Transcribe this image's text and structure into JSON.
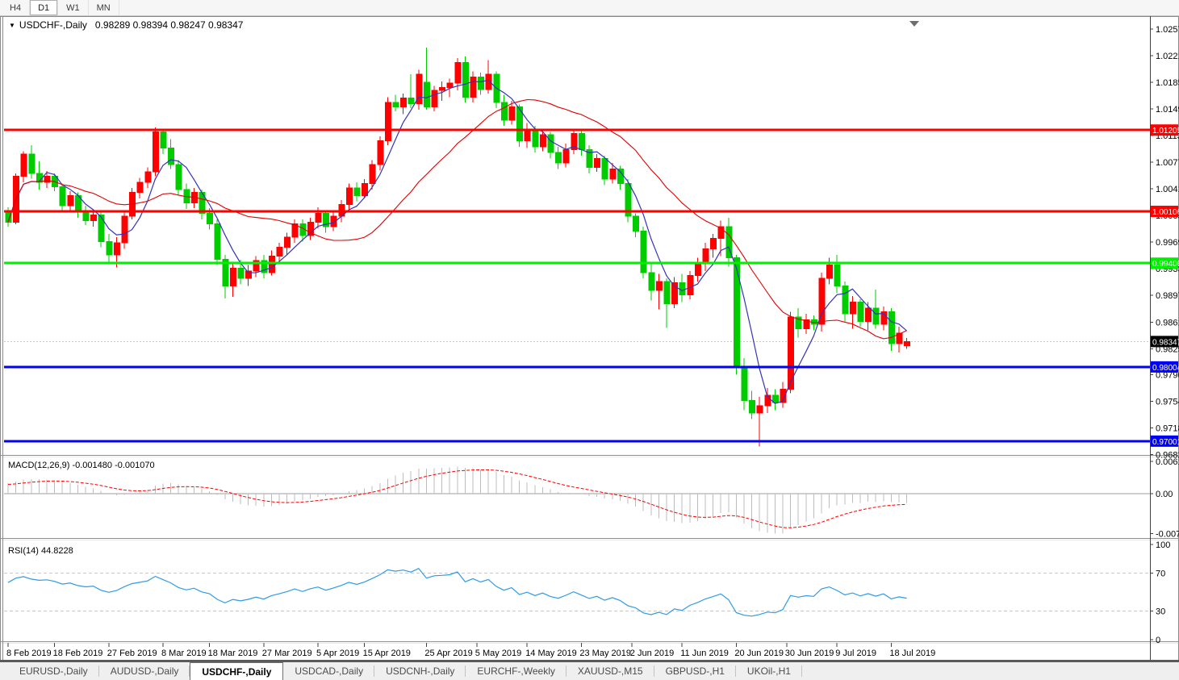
{
  "toolbar": {
    "timeframes": [
      {
        "label": "H4",
        "active": false
      },
      {
        "label": "D1",
        "active": true
      },
      {
        "label": "W1",
        "active": false
      },
      {
        "label": "MN",
        "active": false
      }
    ]
  },
  "chart": {
    "title_symbol": "USDCHF-,Daily",
    "title_ohlc": "0.98289 0.98394 0.98247 0.98347",
    "dropdown_icon": "symbol-dropdown-icon",
    "shift_marker_icon": "chart-shift-marker-icon"
  },
  "price_axis": {
    "ticks": [
      "1.02570",
      "1.02210",
      "1.01850",
      "1.01490",
      "1.01130",
      "1.00770",
      "1.00410",
      "1.00050",
      "0.99690",
      "0.99330",
      "0.98970",
      "0.98610",
      "0.98250",
      "0.97900",
      "0.97540",
      "0.97180",
      "0.96820"
    ]
  },
  "date_axis": {
    "labels": [
      {
        "text": "8 Feb 2019",
        "i": 0
      },
      {
        "text": "18 Feb 2019",
        "i": 6
      },
      {
        "text": "27 Feb 2019",
        "i": 13
      },
      {
        "text": "8 Mar 2019",
        "i": 20
      },
      {
        "text": "18 Mar 2019",
        "i": 26
      },
      {
        "text": "27 Mar 2019",
        "i": 33
      },
      {
        "text": "5 Apr 2019",
        "i": 40
      },
      {
        "text": "15 Apr 2019",
        "i": 46
      },
      {
        "text": "25 Apr 2019",
        "i": 54
      },
      {
        "text": "5 May 2019",
        "i": 60.5
      },
      {
        "text": "14 May 2019",
        "i": 67
      },
      {
        "text": "23 May 2019",
        "i": 74
      },
      {
        "text": "2 Jun 2019",
        "i": 80.5
      },
      {
        "text": "11 Jun 2019",
        "i": 87
      },
      {
        "text": "20 Jun 2019",
        "i": 94
      },
      {
        "text": "30 Jun 2019",
        "i": 100.5
      },
      {
        "text": "9 Jul 2019",
        "i": 107
      },
      {
        "text": "18 Jul 2019",
        "i": 114
      }
    ]
  },
  "indicators": {
    "macd": {
      "label": "MACD(12,26,9) -0.001480 -0.001070",
      "name": "MACD",
      "params": "12,26,9",
      "value_main": "-0.001480",
      "value_signal": "-0.001070",
      "axis_ticks": [
        "0.00613",
        "0.00",
        "-0.00761"
      ],
      "histogram_color": "#BDBDBD",
      "signal_color": "#FF0000"
    },
    "rsi": {
      "label": "RSI(14) 44.8228",
      "name": "RSI",
      "params": "14",
      "value": "44.8228",
      "axis_ticks": [
        "100",
        "70",
        "30",
        "0"
      ],
      "levels": [
        70,
        30
      ],
      "line_color": "#2E9BE6",
      "level_color": "#C8C8C8"
    }
  },
  "chart_data": {
    "type": "candlestick",
    "symbol": "USDCHF",
    "timeframe": "Daily",
    "up_color": "#FF0000",
    "down_color": "#00CC00",
    "ma_fast_color": "#3333BB",
    "ma_slow_color": "#E00000",
    "current_price": {
      "value": 0.98347,
      "label": "0.98347",
      "line_color": "#C8C8C8",
      "badge_color": "#000000"
    },
    "horizontal_lines": [
      {
        "price": 1.01205,
        "label": "1.01205",
        "color": "#FF0000",
        "kind": "resistance"
      },
      {
        "price": 1.00106,
        "label": "1.00106",
        "color": "#FF0000",
        "kind": "resistance"
      },
      {
        "price": 0.99406,
        "label": "0.99406",
        "color": "#00EE00",
        "kind": "pivot"
      },
      {
        "price": 0.98004,
        "label": "0.98004",
        "color": "#0000FF",
        "kind": "support"
      },
      {
        "price": 0.97001,
        "label": "0.97001",
        "color": "#0000FF",
        "kind": "support"
      }
    ],
    "dates": [
      "2019-02-08",
      "2019-02-11",
      "2019-02-12",
      "2019-02-13",
      "2019-02-14",
      "2019-02-15",
      "2019-02-18",
      "2019-02-19",
      "2019-02-20",
      "2019-02-21",
      "2019-02-22",
      "2019-02-25",
      "2019-02-26",
      "2019-02-27",
      "2019-02-28",
      "2019-03-01",
      "2019-03-04",
      "2019-03-05",
      "2019-03-06",
      "2019-03-07",
      "2019-03-08",
      "2019-03-11",
      "2019-03-12",
      "2019-03-13",
      "2019-03-14",
      "2019-03-15",
      "2019-03-18",
      "2019-03-19",
      "2019-03-20",
      "2019-03-21",
      "2019-03-22",
      "2019-03-25",
      "2019-03-26",
      "2019-03-27",
      "2019-03-28",
      "2019-03-29",
      "2019-04-01",
      "2019-04-02",
      "2019-04-03",
      "2019-04-04",
      "2019-04-05",
      "2019-04-08",
      "2019-04-09",
      "2019-04-10",
      "2019-04-11",
      "2019-04-12",
      "2019-04-15",
      "2019-04-16",
      "2019-04-17",
      "2019-04-18",
      "2019-04-19",
      "2019-04-22",
      "2019-04-23",
      "2019-04-24",
      "2019-04-25",
      "2019-04-26",
      "2019-04-29",
      "2019-04-30",
      "2019-05-01",
      "2019-05-02",
      "2019-05-03",
      "2019-05-06",
      "2019-05-07",
      "2019-05-08",
      "2019-05-09",
      "2019-05-10",
      "2019-05-13",
      "2019-05-14",
      "2019-05-15",
      "2019-05-16",
      "2019-05-17",
      "2019-05-20",
      "2019-05-21",
      "2019-05-22",
      "2019-05-23",
      "2019-05-24",
      "2019-05-27",
      "2019-05-28",
      "2019-05-29",
      "2019-05-30",
      "2019-05-31",
      "2019-06-03",
      "2019-06-04",
      "2019-06-05",
      "2019-06-06",
      "2019-06-07",
      "2019-06-10",
      "2019-06-11",
      "2019-06-12",
      "2019-06-13",
      "2019-06-14",
      "2019-06-17",
      "2019-06-18",
      "2019-06-19",
      "2019-06-20",
      "2019-06-21",
      "2019-06-24",
      "2019-06-25",
      "2019-06-26",
      "2019-06-27",
      "2019-06-28",
      "2019-07-01",
      "2019-07-02",
      "2019-07-03",
      "2019-07-04",
      "2019-07-05",
      "2019-07-08",
      "2019-07-09",
      "2019-07-10",
      "2019-07-11",
      "2019-07-12",
      "2019-07-15",
      "2019-07-16",
      "2019-07-17",
      "2019-07-18",
      "2019-07-19",
      "2019-07-22"
    ],
    "ohlc": [
      [
        1.001,
        1.0016,
        0.999,
        0.9996
      ],
      [
        0.9996,
        1.0062,
        0.9993,
        1.0058
      ],
      [
        1.0058,
        1.0092,
        1.005,
        1.0088
      ],
      [
        1.0088,
        1.01,
        1.0055,
        1.0062
      ],
      [
        1.0062,
        1.0078,
        1.004,
        1.005
      ],
      [
        1.005,
        1.0065,
        1.0042,
        1.0058
      ],
      [
        1.0058,
        1.0062,
        1.0038,
        1.0044
      ],
      [
        1.0044,
        1.0048,
        1.001,
        1.0018
      ],
      [
        1.0018,
        1.0038,
        1.0012,
        1.0032
      ],
      [
        1.0032,
        1.0036,
        1.0002,
        1.001
      ],
      [
        1.001,
        1.0018,
        0.9992,
        0.9998
      ],
      [
        0.9998,
        1.0012,
        0.999,
        1.0006
      ],
      [
        1.0006,
        1.0009,
        0.9962,
        0.997
      ],
      [
        0.997,
        0.998,
        0.9942,
        0.9952
      ],
      [
        0.9952,
        0.9976,
        0.9935,
        0.9968
      ],
      [
        0.9968,
        1.001,
        0.996,
        1.0004
      ],
      [
        1.0004,
        1.0042,
        1.0,
        1.0036
      ],
      [
        1.0036,
        1.0056,
        1.0028,
        1.005
      ],
      [
        1.005,
        1.007,
        1.0042,
        1.0064
      ],
      [
        1.0064,
        1.0124,
        1.0058,
        1.0118
      ],
      [
        1.0118,
        1.0122,
        1.0088,
        1.0096
      ],
      [
        1.0096,
        1.0108,
        1.0068,
        1.0074
      ],
      [
        1.0074,
        1.008,
        1.0032,
        1.004
      ],
      [
        1.004,
        1.0048,
        1.0014,
        1.0022
      ],
      [
        1.0022,
        1.0042,
        1.0015,
        1.0036
      ],
      [
        1.0036,
        1.004,
        1.0,
        1.0008
      ],
      [
        1.0008,
        1.0015,
        0.9986,
        0.9994
      ],
      [
        0.9994,
        1.0,
        0.9938,
        0.9946
      ],
      [
        0.9946,
        0.9952,
        0.9893,
        0.991
      ],
      [
        0.991,
        0.994,
        0.9895,
        0.9934
      ],
      [
        0.9934,
        0.9945,
        0.9912,
        0.992
      ],
      [
        0.992,
        0.9938,
        0.991,
        0.993
      ],
      [
        0.993,
        0.995,
        0.9922,
        0.9944
      ],
      [
        0.9944,
        0.9952,
        0.992,
        0.9928
      ],
      [
        0.9928,
        0.9958,
        0.9924,
        0.995
      ],
      [
        0.995,
        0.9968,
        0.994,
        0.9962
      ],
      [
        0.9962,
        0.9982,
        0.9952,
        0.9976
      ],
      [
        0.9976,
        1.0,
        0.9968,
        0.9994
      ],
      [
        0.9994,
        1.0,
        0.997,
        0.9978
      ],
      [
        0.9978,
        1.0002,
        0.9972,
        0.9996
      ],
      [
        0.9996,
        1.0016,
        0.9988,
        1.0008
      ],
      [
        1.0008,
        1.0012,
        0.9982,
        0.999
      ],
      [
        0.999,
        1.001,
        0.9984,
        1.0004
      ],
      [
        1.0004,
        1.0026,
        0.9996,
        1.002
      ],
      [
        1.002,
        1.0048,
        1.0012,
        1.0042
      ],
      [
        1.0042,
        1.005,
        1.0024,
        1.0032
      ],
      [
        1.0032,
        1.0054,
        1.0028,
        1.0048
      ],
      [
        1.0048,
        1.008,
        1.004,
        1.0074
      ],
      [
        1.0074,
        1.0112,
        1.0066,
        1.0106
      ],
      [
        1.0106,
        1.0165,
        1.01,
        1.0158
      ],
      [
        1.0158,
        1.0168,
        1.0146,
        1.0152
      ],
      [
        1.0152,
        1.017,
        1.0142,
        1.0164
      ],
      [
        1.0164,
        1.0196,
        1.015,
        1.0156
      ],
      [
        1.0156,
        1.0202,
        1.0148,
        1.0196
      ],
      [
        1.0185,
        1.0232,
        1.0148,
        1.0152
      ],
      [
        1.0152,
        1.018,
        1.0146,
        1.0174
      ],
      [
        1.0174,
        1.0186,
        1.016,
        1.0178
      ],
      [
        1.0178,
        1.019,
        1.0165,
        1.0184
      ],
      [
        1.0184,
        1.0218,
        1.0174,
        1.0212
      ],
      [
        1.0212,
        1.022,
        1.0158,
        1.0165
      ],
      [
        1.0165,
        1.02,
        1.0158,
        1.0192
      ],
      [
        1.0192,
        1.0198,
        1.0168,
        1.0175
      ],
      [
        1.0175,
        1.0215,
        1.017,
        1.0196
      ],
      [
        1.0196,
        1.02,
        1.015,
        1.0158
      ],
      [
        1.0158,
        1.0168,
        1.0126,
        1.0134
      ],
      [
        1.0134,
        1.016,
        1.0128,
        1.0152
      ],
      [
        1.0152,
        1.0155,
        1.0098,
        1.0106
      ],
      [
        1.0106,
        1.013,
        1.0096,
        1.0122
      ],
      [
        1.0122,
        1.0126,
        1.009,
        1.0098
      ],
      [
        1.0098,
        1.0122,
        1.0092,
        1.0114
      ],
      [
        1.0114,
        1.0118,
        1.0082,
        1.009
      ],
      [
        1.009,
        1.0098,
        1.0068,
        1.0076
      ],
      [
        1.0076,
        1.0102,
        1.007,
        1.0094
      ],
      [
        1.0094,
        1.0122,
        1.0088,
        1.0116
      ],
      [
        1.0116,
        1.0121,
        1.0086,
        1.0094
      ],
      [
        1.0094,
        1.01,
        1.0062,
        1.007
      ],
      [
        1.007,
        1.0088,
        1.0064,
        1.0082
      ],
      [
        1.0082,
        1.0086,
        1.0046,
        1.0054
      ],
      [
        1.0054,
        1.0076,
        1.0048,
        1.0068
      ],
      [
        1.0068,
        1.0072,
        1.004,
        1.0048
      ],
      [
        1.0048,
        1.0054,
        0.9996,
        1.0004
      ],
      [
        1.0004,
        1.0008,
        0.9976,
        0.9984
      ],
      [
        0.9984,
        0.999,
        0.992,
        0.9928
      ],
      [
        0.9928,
        0.994,
        0.989,
        0.9904
      ],
      [
        0.9904,
        0.9926,
        0.9878,
        0.9916
      ],
      [
        0.9916,
        0.992,
        0.9853,
        0.9886
      ],
      [
        0.9886,
        0.9922,
        0.988,
        0.9914
      ],
      [
        0.9914,
        0.9926,
        0.9888,
        0.9898
      ],
      [
        0.9898,
        0.993,
        0.9892,
        0.9924
      ],
      [
        0.9924,
        0.9948,
        0.9916,
        0.994
      ],
      [
        0.994,
        0.9968,
        0.993,
        0.996
      ],
      [
        0.996,
        0.998,
        0.9948,
        0.9974
      ],
      [
        0.9974,
        0.9998,
        0.995,
        0.999
      ],
      [
        0.999,
        1.0002,
        0.9936,
        0.9948
      ],
      [
        0.9948,
        0.9952,
        0.979,
        0.98
      ],
      [
        0.98,
        0.9812,
        0.9742,
        0.9755
      ],
      [
        0.9755,
        0.9768,
        0.973,
        0.9738
      ],
      [
        0.9738,
        0.976,
        0.9693,
        0.9748
      ],
      [
        0.9748,
        0.9772,
        0.9738,
        0.9762
      ],
      [
        0.9762,
        0.977,
        0.9742,
        0.9752
      ],
      [
        0.9752,
        0.978,
        0.9745,
        0.977
      ],
      [
        0.977,
        0.9875,
        0.9765,
        0.9868
      ],
      [
        0.9868,
        0.988,
        0.984,
        0.9852
      ],
      [
        0.9852,
        0.9872,
        0.9845,
        0.9864
      ],
      [
        0.9864,
        0.987,
        0.985,
        0.9858
      ],
      [
        0.9858,
        0.9928,
        0.9848,
        0.992
      ],
      [
        0.992,
        0.9948,
        0.9912,
        0.9938
      ],
      [
        0.9938,
        0.9952,
        0.99,
        0.991
      ],
      [
        0.991,
        0.9916,
        0.9862,
        0.9872
      ],
      [
        0.9872,
        0.9896,
        0.9852,
        0.9888
      ],
      [
        0.9888,
        0.9892,
        0.9855,
        0.9862
      ],
      [
        0.9862,
        0.9888,
        0.985,
        0.988
      ],
      [
        0.988,
        0.9905,
        0.9852,
        0.9858
      ],
      [
        0.9858,
        0.9882,
        0.985,
        0.9875
      ],
      [
        0.9875,
        0.988,
        0.9822,
        0.9832
      ],
      [
        0.9832,
        0.9855,
        0.982,
        0.9846
      ],
      [
        0.98289,
        0.98394,
        0.98247,
        0.98347
      ]
    ]
  },
  "tabs": [
    {
      "label": "EURUSD-,Daily",
      "active": false
    },
    {
      "label": "AUDUSD-,Daily",
      "active": false
    },
    {
      "label": "USDCHF-,Daily",
      "active": true
    },
    {
      "label": "USDCAD-,Daily",
      "active": false
    },
    {
      "label": "USDCNH-,Daily",
      "active": false
    },
    {
      "label": "EURCHF-,Weekly",
      "active": false
    },
    {
      "label": "XAUUSD-,M15",
      "active": false
    },
    {
      "label": "GBPUSD-,H1",
      "active": false
    },
    {
      "label": "UKOil-,H1",
      "active": false
    }
  ]
}
